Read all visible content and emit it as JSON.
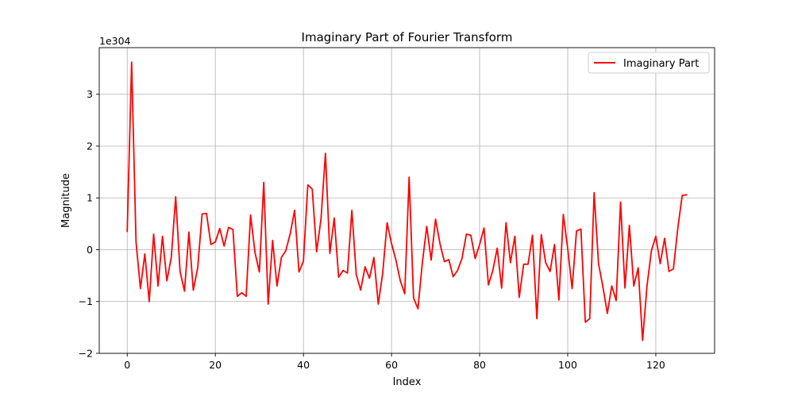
{
  "chart_data": {
    "type": "line",
    "title": "Imaginary Part of Fourier Transform",
    "xlabel": "Index",
    "ylabel": "Magnitude",
    "y_offset_label": "1e304",
    "xlim": [
      -6.35,
      133.35
    ],
    "ylim": [
      -2.0,
      3.9
    ],
    "x_ticks": [
      0,
      20,
      40,
      60,
      80,
      100,
      120
    ],
    "x_tick_labels": [
      "0",
      "20",
      "40",
      "60",
      "80",
      "100",
      "120"
    ],
    "y_ticks": [
      -2,
      -1,
      0,
      1,
      2,
      3
    ],
    "y_tick_labels": [
      "−2",
      "−1",
      "0",
      "1",
      "2",
      "3"
    ],
    "grid": true,
    "legend_position": "top-right",
    "series": [
      {
        "name": "Imaginary Part",
        "color": "#ff0000",
        "x": [
          0,
          1,
          2,
          3,
          4,
          5,
          6,
          7,
          8,
          9,
          10,
          11,
          12,
          13,
          14,
          15,
          16,
          17,
          18,
          19,
          20,
          21,
          22,
          23,
          24,
          25,
          26,
          27,
          28,
          29,
          30,
          31,
          32,
          33,
          34,
          35,
          36,
          37,
          38,
          39,
          40,
          41,
          42,
          43,
          44,
          45,
          46,
          47,
          48,
          49,
          50,
          51,
          52,
          53,
          54,
          55,
          56,
          57,
          58,
          59,
          60,
          61,
          62,
          63,
          64,
          65,
          66,
          67,
          68,
          69,
          70,
          71,
          72,
          73,
          74,
          75,
          76,
          77,
          78,
          79,
          80,
          81,
          82,
          83,
          84,
          85,
          86,
          87,
          88,
          89,
          90,
          91,
          92,
          93,
          94,
          95,
          96,
          97,
          98,
          99,
          100,
          101,
          102,
          103,
          104,
          105,
          106,
          107,
          108,
          109,
          110,
          111,
          112,
          113,
          114,
          115,
          116,
          117,
          118,
          119,
          120,
          121,
          122,
          123,
          124,
          125,
          126,
          127
        ],
        "y": [
          0.35,
          3.62,
          0.15,
          -0.75,
          -0.08,
          -1.0,
          0.3,
          -0.7,
          0.26,
          -0.6,
          -0.15,
          1.02,
          -0.42,
          -0.8,
          0.34,
          -0.78,
          -0.35,
          0.69,
          0.7,
          0.1,
          0.15,
          0.41,
          0.07,
          0.43,
          0.39,
          -0.9,
          -0.83,
          -0.9,
          0.67,
          -0.05,
          -0.43,
          1.3,
          -1.05,
          0.18,
          -0.7,
          -0.15,
          -0.02,
          0.31,
          0.76,
          -0.43,
          -0.22,
          1.25,
          1.17,
          -0.04,
          0.6,
          1.86,
          -0.07,
          0.61,
          -0.53,
          -0.4,
          -0.45,
          0.76,
          -0.48,
          -0.78,
          -0.33,
          -0.55,
          -0.15,
          -1.05,
          -0.45,
          0.52,
          0.12,
          -0.2,
          -0.6,
          -0.85,
          1.4,
          -0.93,
          -1.14,
          -0.25,
          0.45,
          -0.2,
          0.59,
          0.12,
          -0.23,
          -0.19,
          -0.52,
          -0.4,
          -0.17,
          0.3,
          0.28,
          -0.17,
          0.1,
          0.42,
          -0.68,
          -0.4,
          0.03,
          -0.74,
          0.52,
          -0.25,
          0.26,
          -0.92,
          -0.28,
          -0.28,
          0.28,
          -1.33,
          0.29,
          -0.25,
          -0.42,
          0.1,
          -0.97,
          0.68,
          0.02,
          -0.75,
          0.36,
          0.4,
          -1.4,
          -1.33,
          1.1,
          -0.27,
          -0.72,
          -1.23,
          -0.7,
          -0.98,
          0.92,
          -0.74,
          0.47,
          -0.7,
          -0.35,
          -1.75,
          -0.7,
          -0.02,
          0.26,
          -0.27,
          0.22,
          -0.42,
          -0.37,
          0.42,
          1.05,
          1.06
        ]
      }
    ]
  }
}
